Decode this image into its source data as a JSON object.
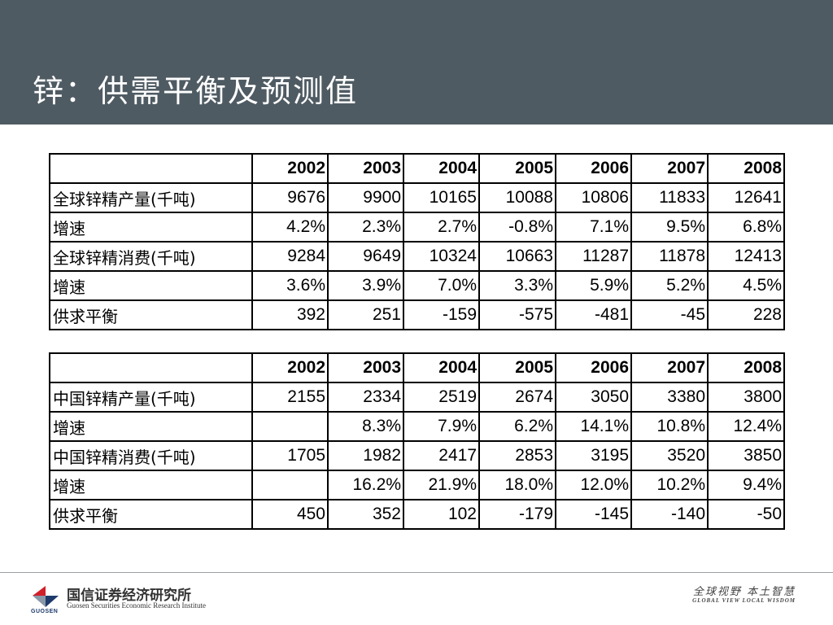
{
  "title": "锌：供需平衡及预测值",
  "table1": {
    "years": [
      "2002",
      "2003",
      "2004",
      "2005",
      "2006",
      "2007",
      "2008"
    ],
    "rows": [
      {
        "label": "全球锌精产量(千吨)",
        "values": [
          "9676",
          "9900",
          "10165",
          "10088",
          "10806",
          "11833",
          "12641"
        ]
      },
      {
        "label": "增速",
        "values": [
          "4.2%",
          "2.3%",
          "2.7%",
          "-0.8%",
          "7.1%",
          "9.5%",
          "6.8%"
        ]
      },
      {
        "label": "全球锌精消费(千吨)",
        "values": [
          "9284",
          "9649",
          "10324",
          "10663",
          "11287",
          "11878",
          "12413"
        ]
      },
      {
        "label": "增速",
        "values": [
          "3.6%",
          "3.9%",
          "7.0%",
          "3.3%",
          "5.9%",
          "5.2%",
          "4.5%"
        ]
      },
      {
        "label": "供求平衡",
        "values": [
          "392",
          "251",
          "-159",
          "-575",
          "-481",
          "-45",
          "228"
        ]
      }
    ]
  },
  "table2": {
    "years": [
      "2002",
      "2003",
      "2004",
      "2005",
      "2006",
      "2007",
      "2008"
    ],
    "rows": [
      {
        "label": "中国锌精产量(千吨)",
        "values": [
          "2155",
          "2334",
          "2519",
          "2674",
          "3050",
          "3380",
          "3800"
        ]
      },
      {
        "label": "增速",
        "values": [
          "",
          "8.3%",
          "7.9%",
          "6.2%",
          "14.1%",
          "10.8%",
          "12.4%"
        ]
      },
      {
        "label": "中国锌精消费(千吨)",
        "values": [
          "1705",
          "1982",
          "2417",
          "2853",
          "3195",
          "3520",
          "3850"
        ]
      },
      {
        "label": "增速",
        "values": [
          "",
          "16.2%",
          "21.9%",
          "18.0%",
          "12.0%",
          "10.2%",
          "9.4%"
        ]
      },
      {
        "label": "供求平衡",
        "values": [
          "450",
          "352",
          "102",
          "-179",
          "-145",
          "-140",
          "-50"
        ]
      }
    ]
  },
  "footer": {
    "logo_text": "GUOSEN",
    "company_cn": "国信证券经济研究所",
    "company_en": "Guosen Securities Economic Research Institute",
    "slogan_cn": "全球视野  本土智慧",
    "slogan_en": "GLOBAL VIEW    LOCAL WISDOM"
  },
  "colors": {
    "header_bg": "#4f5b63",
    "logo_red": "#d0202a",
    "logo_blue": "#1d3a6b"
  }
}
